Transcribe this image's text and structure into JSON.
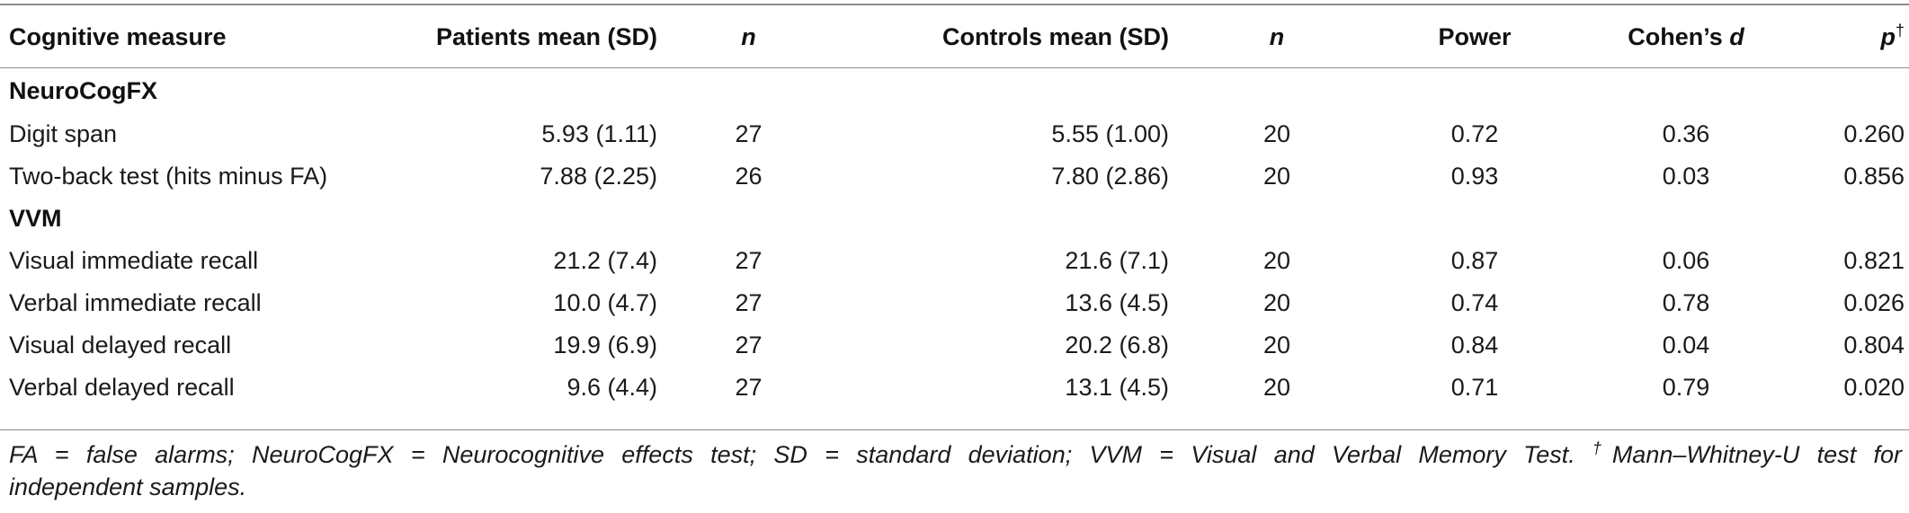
{
  "table": {
    "headers": {
      "measure": "Cognitive measure",
      "patients_mean": "Patients mean (SD)",
      "patients_n": "n",
      "controls_mean": "Controls mean (SD)",
      "controls_n": "n",
      "power": "Power",
      "cohens_prefix": "Cohen’s ",
      "cohens_d": "d",
      "p": "p",
      "p_mark": "†"
    },
    "sections": [
      {
        "title": "NeuroCogFX",
        "rows": [
          {
            "measure": "Digit span",
            "patients_mean": "5.93 (1.11)",
            "patients_n": "27",
            "controls_mean": "5.55 (1.00)",
            "controls_n": "20",
            "power": "0.72",
            "cohens_d": "0.36",
            "p": "0.260"
          },
          {
            "measure": "Two-back test (hits minus FA)",
            "patients_mean": "7.88 (2.25)",
            "patients_n": "26",
            "controls_mean": "7.80 (2.86)",
            "controls_n": "20",
            "power": "0.93",
            "cohens_d": "0.03",
            "p": "0.856"
          }
        ]
      },
      {
        "title": "VVM",
        "rows": [
          {
            "measure": "Visual immediate recall",
            "patients_mean": "21.2 (7.4)",
            "patients_n": "27",
            "controls_mean": "21.6 (7.1)",
            "controls_n": "20",
            "power": "0.87",
            "cohens_d": "0.06",
            "p": "0.821"
          },
          {
            "measure": "Verbal immediate recall",
            "patients_mean": "10.0 (4.7)",
            "patients_n": "27",
            "controls_mean": "13.6 (4.5)",
            "controls_n": "20",
            "power": "0.74",
            "cohens_d": "0.78",
            "p": "0.026"
          },
          {
            "measure": "Visual delayed recall",
            "patients_mean": "19.9 (6.9)",
            "patients_n": "27",
            "controls_mean": "20.2 (6.8)",
            "controls_n": "20",
            "power": "0.84",
            "cohens_d": "0.04",
            "p": "0.804"
          },
          {
            "measure": "Verbal delayed recall",
            "patients_mean": "9.6 (4.4)",
            "patients_n": "27",
            "controls_mean": "13.1 (4.5)",
            "controls_n": "20",
            "power": "0.71",
            "cohens_d": "0.79",
            "p": "0.020"
          }
        ]
      }
    ]
  },
  "footnote": {
    "line1_text": "FA = false alarms; NeuroCogFX = Neurocognitive effects test; SD = standard deviation; VVM = Visual and Verbal Memory Test. ",
    "dagger": "†",
    "line1_tail": "Mann–Whitney-U test for",
    "line2": "independent samples."
  }
}
